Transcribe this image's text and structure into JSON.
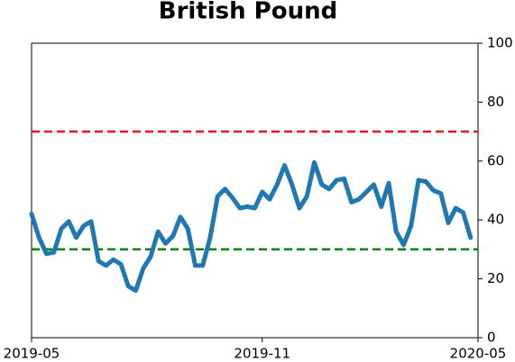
{
  "chart_data": {
    "type": "line",
    "title": "British Pound",
    "categories": [
      "2019-05",
      null,
      null,
      null,
      null,
      null,
      null,
      null,
      null,
      null,
      null,
      null,
      null,
      null,
      null,
      null,
      null,
      null,
      null,
      null,
      null,
      null,
      null,
      null,
      null,
      null,
      null,
      null,
      null,
      null,
      null,
      "2019-11",
      null,
      null,
      null,
      null,
      null,
      null,
      null,
      null,
      null,
      null,
      null,
      null,
      null,
      null,
      null,
      null,
      null,
      null,
      null,
      null,
      null,
      null,
      null,
      null,
      null,
      null,
      null,
      null,
      "2020-05"
    ],
    "values": [
      42,
      34,
      28.5,
      29,
      37,
      39.5,
      34,
      38,
      39.5,
      26,
      24.5,
      26.5,
      25,
      17.5,
      16,
      23.5,
      27.5,
      36,
      32,
      34.5,
      41,
      37,
      24.5,
      24.5,
      34,
      48,
      50.5,
      47.5,
      44,
      44.5,
      44,
      49.5,
      47,
      52,
      58.5,
      52,
      44,
      48,
      59.5,
      52,
      50.5,
      53.5,
      54,
      46,
      47,
      49.5,
      52,
      44.5,
      52.5,
      36,
      31.5,
      38,
      53.5,
      53,
      50,
      49,
      39,
      44,
      42.5,
      34,
      null
    ],
    "color": "#1f77b4",
    "ylim": [
      0,
      100
    ],
    "yticks": [
      0,
      20,
      40,
      60,
      80,
      100
    ],
    "hlines": [
      {
        "value": 70,
        "color": "#e31a1c"
      },
      {
        "value": 30,
        "color": "#008000"
      }
    ]
  }
}
